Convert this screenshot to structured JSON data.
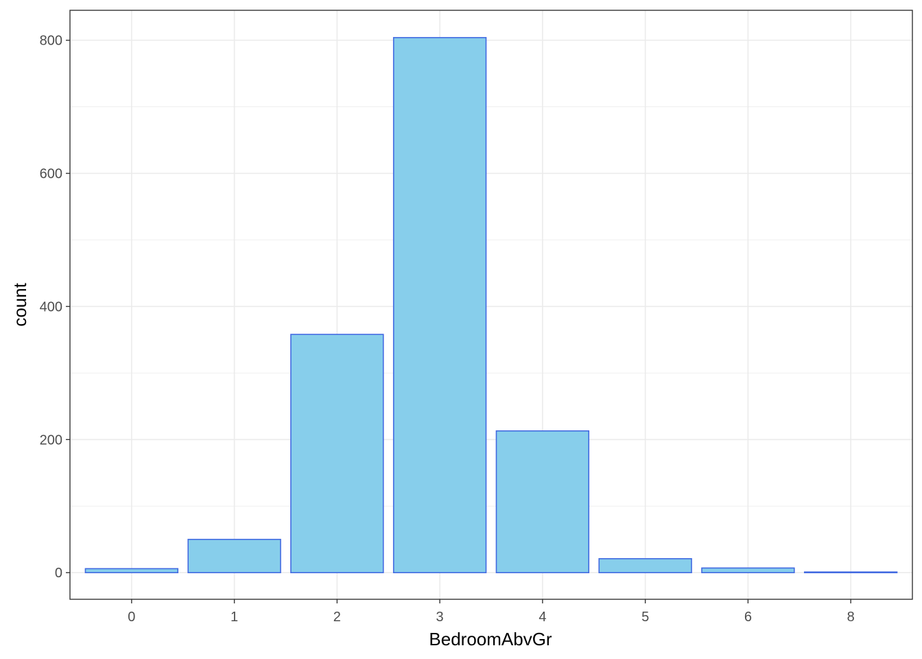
{
  "chart_data": {
    "type": "bar",
    "title": "",
    "xlabel": "BedroomAbvGr",
    "ylabel": "count",
    "categories": [
      "0",
      "1",
      "2",
      "3",
      "4",
      "5",
      "6",
      "8"
    ],
    "values": [
      6,
      50,
      358,
      804,
      213,
      21,
      7,
      1
    ],
    "ylim": [
      -40,
      845
    ],
    "y_ticks": [
      0,
      200,
      400,
      600,
      800
    ],
    "y_minor_ticks": [
      100,
      300,
      500,
      700
    ],
    "grid": true,
    "legend": "none",
    "colors": {
      "bar_fill": "#87ceeb",
      "bar_stroke": "#4169e1",
      "grid": "#ebebeb",
      "panel_border": "#333333"
    }
  }
}
